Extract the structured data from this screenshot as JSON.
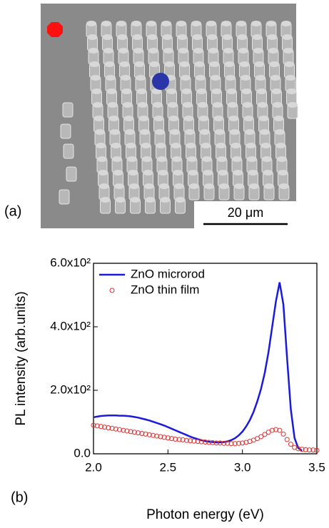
{
  "panel_a": {
    "label": "(a)",
    "scale_bar": "20 μm"
  },
  "panel_b": {
    "label": "(b)"
  },
  "chart_data": {
    "type": "line",
    "xlabel": "Photon energy (eV)",
    "ylabel": "PL intensity (arb.units)",
    "xlim": [
      2.0,
      3.5
    ],
    "ylim": [
      0,
      600
    ],
    "xticks": [
      {
        "value": 2.0,
        "label": "2.0"
      },
      2.5,
      {
        "value": 3.0,
        "label": "3.0"
      },
      3.5
    ],
    "yticks": [
      {
        "value": 0,
        "label": "0.0"
      },
      {
        "value": 200,
        "label": "2.0x10²"
      },
      {
        "value": 400,
        "label": "4.0x10²"
      },
      {
        "value": 600,
        "label": "6.0x10²"
      }
    ],
    "legend": "upper left",
    "x": [
      2.0,
      2.025,
      2.05,
      2.075,
      2.1,
      2.125,
      2.15,
      2.175,
      2.2,
      2.225,
      2.25,
      2.275,
      2.3,
      2.325,
      2.35,
      2.375,
      2.4,
      2.425,
      2.45,
      2.475,
      2.5,
      2.525,
      2.55,
      2.575,
      2.6,
      2.625,
      2.65,
      2.675,
      2.7,
      2.725,
      2.75,
      2.775,
      2.8,
      2.825,
      2.85,
      2.875,
      2.9,
      2.925,
      2.95,
      2.975,
      3.0,
      3.025,
      3.05,
      3.075,
      3.1,
      3.125,
      3.15,
      3.175,
      3.2,
      3.225,
      3.25,
      3.275,
      3.3,
      3.325,
      3.35,
      3.375,
      3.4,
      3.425,
      3.45,
      3.475,
      3.5
    ],
    "series": [
      {
        "name": "ZnO microrod",
        "color": "#1a1adc",
        "marker": "line",
        "values": [
          115,
          117,
          119,
          120,
          121,
          121,
          121,
          120,
          120,
          119,
          118,
          116,
          114,
          111,
          108,
          105,
          101,
          97,
          93,
          89,
          84,
          79,
          74,
          69,
          64,
          59,
          54,
          50,
          46,
          43,
          40,
          38,
          37,
          36,
          36,
          37,
          39,
          43,
          49,
          58,
          70,
          86,
          106,
          132,
          165,
          205,
          255,
          320,
          400,
          480,
          540,
          470,
          300,
          140,
          50,
          18,
          10,
          null,
          null,
          null,
          null
        ]
      },
      {
        "name": "ZnO thin film",
        "color": "#e03030",
        "marker": "circle",
        "values": [
          90,
          88,
          86,
          84,
          82,
          80,
          78,
          76,
          74,
          72,
          70,
          68,
          66,
          64,
          62,
          60,
          58,
          56,
          54,
          52,
          50,
          48,
          46,
          45,
          44,
          42,
          41,
          40,
          39,
          38,
          37,
          36,
          35,
          34,
          34,
          33,
          33,
          32,
          32,
          33,
          34,
          36,
          39,
          43,
          48,
          54,
          61,
          68,
          74,
          76,
          74,
          62,
          45,
          30,
          20,
          16,
          14,
          13,
          12,
          12,
          11
        ]
      }
    ]
  }
}
